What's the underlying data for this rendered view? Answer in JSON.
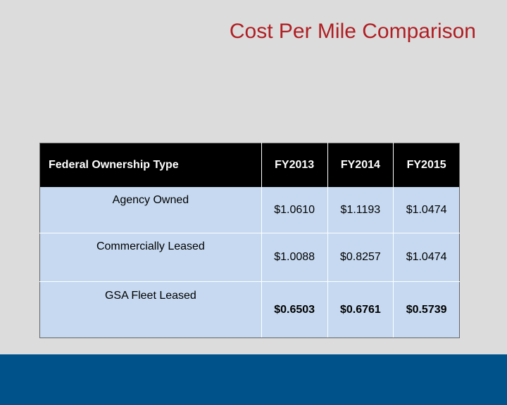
{
  "title": "Cost Per Mile Comparison",
  "table": {
    "headers": [
      "Federal Ownership Type",
      "FY2013",
      "FY2014",
      "FY2015"
    ],
    "rows": [
      {
        "label": "Agency Owned",
        "values": [
          "$1.0610",
          "$1.1193",
          "$1.0474"
        ]
      },
      {
        "label": "Commercially Leased",
        "values": [
          "$1.0088",
          "$0.8257",
          "$1.0474"
        ]
      },
      {
        "label": "GSA Fleet Leased",
        "values": [
          "$0.6503",
          "$0.6761",
          "$0.5739"
        ]
      }
    ]
  },
  "colors": {
    "title": "#b01e23",
    "header_bg": "#000000",
    "cell_bg": "#c6d9f0",
    "footer_bar": "#00538a",
    "background": "#dcdcdc"
  }
}
